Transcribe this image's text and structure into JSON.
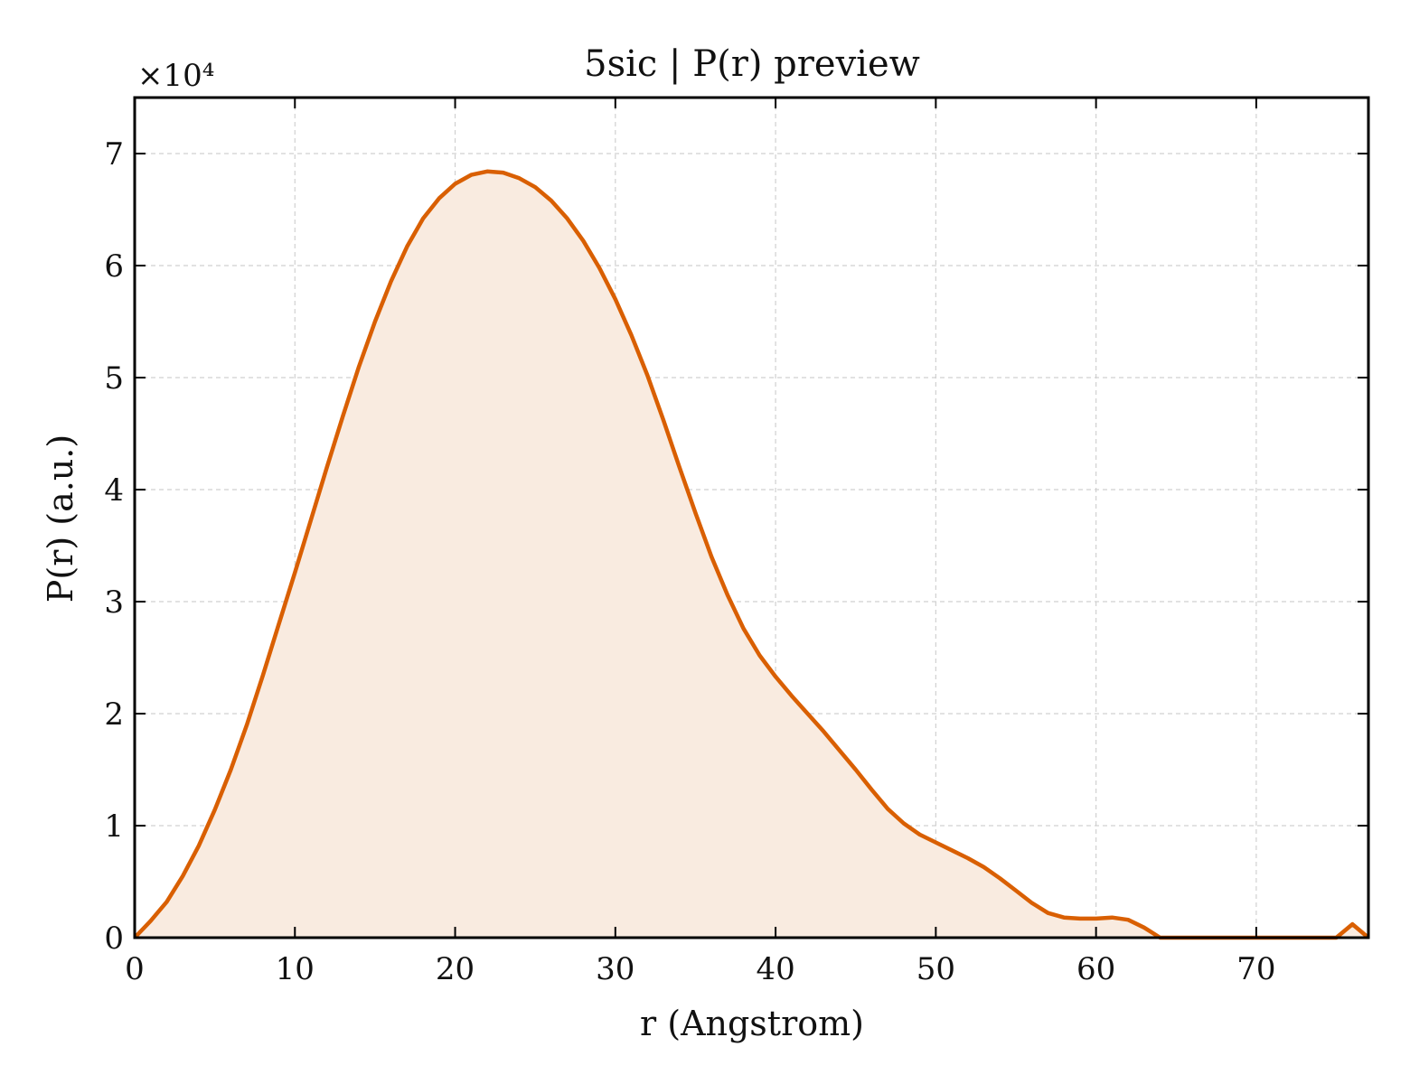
{
  "chart_data": {
    "type": "area",
    "title": "5sic | P(r) preview",
    "xlabel": "r (Angstrom)",
    "ylabel": "P(r) (a.u.)",
    "y_multiplier_label": "×10⁴",
    "xlim": [
      0,
      77
    ],
    "ylim": [
      0,
      7.5
    ],
    "x_ticks": [
      0,
      10,
      20,
      30,
      40,
      50,
      60,
      70
    ],
    "y_ticks": [
      0,
      1,
      2,
      3,
      4,
      5,
      6,
      7
    ],
    "grid": true,
    "legend": "none",
    "colors": {
      "line": "#d95f02",
      "fill": "#f9ebe0"
    },
    "series": [
      {
        "x": [
          0,
          1,
          2,
          3,
          4,
          5,
          6,
          7,
          8,
          9,
          10,
          11,
          12,
          13,
          14,
          15,
          16,
          17,
          18,
          19,
          20,
          21,
          22,
          23,
          24,
          25,
          26,
          27,
          28,
          29,
          30,
          31,
          32,
          33,
          34,
          35,
          36,
          37,
          38,
          39,
          40,
          41,
          42,
          43,
          44,
          45,
          46,
          47,
          48,
          49,
          50,
          51,
          52,
          53,
          54,
          55,
          56,
          57,
          58,
          59,
          60,
          61,
          62,
          63,
          64,
          65,
          66,
          67,
          68,
          69,
          70,
          71,
          72,
          73,
          74,
          75,
          76,
          77
        ],
        "y": [
          0.0,
          0.15,
          0.32,
          0.55,
          0.82,
          1.14,
          1.5,
          1.9,
          2.34,
          2.8,
          3.26,
          3.73,
          4.2,
          4.66,
          5.1,
          5.5,
          5.86,
          6.17,
          6.42,
          6.6,
          6.73,
          6.81,
          6.84,
          6.83,
          6.78,
          6.7,
          6.58,
          6.42,
          6.22,
          5.98,
          5.7,
          5.38,
          5.02,
          4.62,
          4.2,
          3.79,
          3.4,
          3.06,
          2.76,
          2.52,
          2.33,
          2.16,
          2.0,
          1.84,
          1.67,
          1.5,
          1.32,
          1.15,
          1.02,
          0.92,
          0.85,
          0.78,
          0.71,
          0.63,
          0.53,
          0.42,
          0.31,
          0.22,
          0.18,
          0.17,
          0.17,
          0.18,
          0.16,
          0.09,
          0.0,
          0.0,
          0.0,
          0.0,
          0.0,
          0.0,
          0.0,
          0.0,
          0.0,
          0.0,
          0.0,
          0.0,
          0.12,
          0.0
        ]
      }
    ]
  }
}
